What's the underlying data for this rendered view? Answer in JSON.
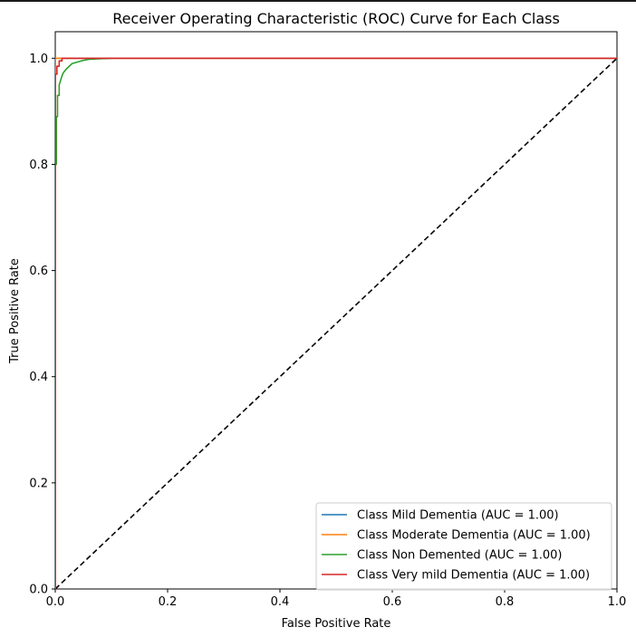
{
  "chart_data": {
    "type": "line",
    "title": "Receiver Operating Characteristic (ROC) Curve for Each Class",
    "xlabel": "False Positive Rate",
    "ylabel": "True Positive Rate",
    "xlim": [
      0.0,
      1.0
    ],
    "ylim": [
      0.0,
      1.05
    ],
    "xticks": [
      "0.0",
      "0.2",
      "0.4",
      "0.6",
      "0.8",
      "1.0"
    ],
    "yticks": [
      "0.0",
      "0.2",
      "0.4",
      "0.6",
      "0.8",
      "1.0"
    ],
    "grid": false,
    "legend_position": "lower-right",
    "series": [
      {
        "name": "Class Mild Dementia (AUC = 1.00)",
        "color": "#1f77b4",
        "x": [
          0.0,
          0.0,
          0.0,
          1.0
        ],
        "y": [
          0.0,
          0.99,
          1.0,
          1.0
        ]
      },
      {
        "name": "Class Moderate Dementia (AUC = 1.00)",
        "color": "#ff7f0e",
        "x": [
          0.0,
          0.0,
          1.0
        ],
        "y": [
          0.0,
          1.0,
          1.0
        ]
      },
      {
        "name": "Class Non Demented (AUC = 1.00)",
        "color": "#2ca02c",
        "x": [
          0.0,
          0.0,
          0.002,
          0.002,
          0.004,
          0.004,
          0.007,
          0.007,
          0.01,
          0.013,
          0.016,
          0.02,
          0.025,
          0.03,
          0.04,
          0.05,
          0.06,
          0.08,
          0.1
        ],
        "y": [
          0.0,
          0.8,
          0.8,
          0.89,
          0.89,
          0.93,
          0.93,
          0.95,
          0.96,
          0.97,
          0.975,
          0.98,
          0.985,
          0.99,
          0.993,
          0.996,
          0.998,
          0.999,
          1.0
        ]
      },
      {
        "name": "Class Very mild Dementia (AUC = 1.00)",
        "color": "#d62728",
        "x": [
          0.0,
          0.0,
          0.003,
          0.003,
          0.007,
          0.007,
          0.012,
          0.012,
          1.0
        ],
        "y": [
          0.0,
          0.97,
          0.97,
          0.985,
          0.985,
          0.995,
          0.995,
          1.0,
          1.0
        ]
      },
      {
        "name": "",
        "color": "#000000",
        "dashed": true,
        "x": [
          0.0,
          1.0
        ],
        "y": [
          0.0,
          1.0
        ]
      }
    ]
  }
}
